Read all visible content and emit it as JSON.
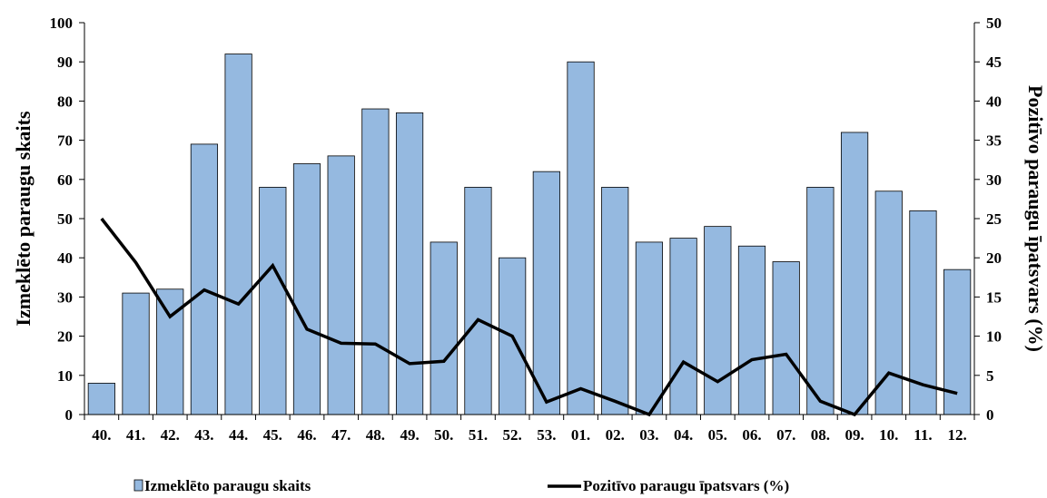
{
  "chart_data": {
    "type": "bar",
    "categories": [
      "40.",
      "41.",
      "42.",
      "43.",
      "44.",
      "45.",
      "46.",
      "47.",
      "48.",
      "49.",
      "50.",
      "51.",
      "52.",
      "53.",
      "01.",
      "02.",
      "03.",
      "04.",
      "05.",
      "06.",
      "07.",
      "08.",
      "09.",
      "10.",
      "11.",
      "12."
    ],
    "series": [
      {
        "name": "Izmeklēto paraugu skaits",
        "type": "bar",
        "axis": "left",
        "color": "#95b9e0",
        "values": [
          8,
          31,
          32,
          69,
          92,
          58,
          64,
          66,
          78,
          77,
          44,
          58,
          40,
          62,
          90,
          58,
          44,
          45,
          48,
          43,
          39,
          58,
          72,
          57,
          52,
          37
        ]
      },
      {
        "name": "Pozitīvo paraugu īpatsvars (%)",
        "type": "line",
        "axis": "right",
        "color": "#000000",
        "values": [
          25,
          19.4,
          12.5,
          15.9,
          14.1,
          19,
          10.9,
          9.1,
          9,
          6.5,
          6.8,
          12.1,
          10,
          1.6,
          3.3,
          1.7,
          0,
          6.7,
          4.2,
          7,
          7.7,
          1.7,
          0,
          5.3,
          3.8,
          2.7
        ]
      }
    ],
    "ylabel": "Izmeklēto paraugu skaits",
    "y2label": "Pozitīvo paraugu īpatsvars (%)",
    "ylim": [
      0,
      100
    ],
    "y2lim": [
      0,
      50
    ],
    "yticks": [
      0,
      10,
      20,
      30,
      40,
      50,
      60,
      70,
      80,
      90,
      100
    ],
    "y2ticks": [
      0,
      5,
      10,
      15,
      20,
      25,
      30,
      35,
      40,
      45,
      50
    ],
    "grid": false,
    "legend_position": "bottom"
  }
}
